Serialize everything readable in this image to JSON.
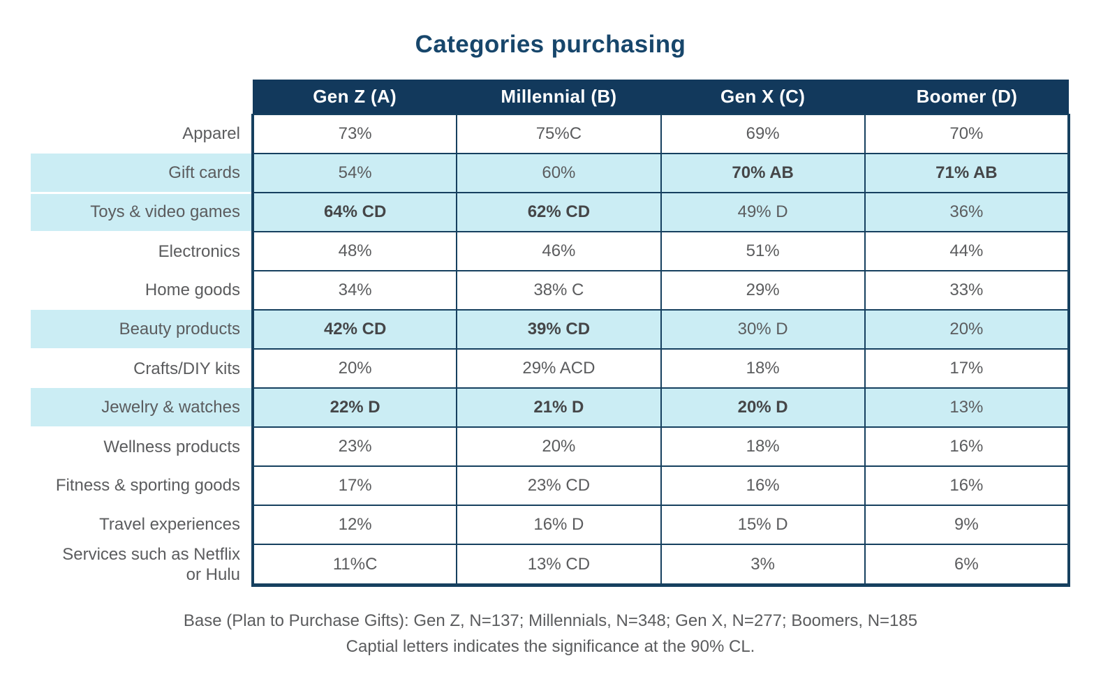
{
  "title": "Categories purchasing",
  "colors": {
    "header_bg": "#12395c",
    "border_navy": "#16405f",
    "highlight": "#cbedf4",
    "text_gray": "#5b5c5e",
    "text_bold": "#454648",
    "title_navy": "#17466b"
  },
  "footnotes": [
    "Base (Plan to Purchase Gifts): Gen Z, N=137; Millennials, N=348; Gen X, N=277; Boomers, N=185",
    "Captial letters indicates the significance at the 90% CL."
  ],
  "chart_data": {
    "type": "table",
    "title": "Categories purchasing",
    "columns": [
      "Gen Z (A)",
      "Millennial (B)",
      "Gen X (C)",
      "Boomer (D)"
    ],
    "categories": [
      "Apparel",
      "Gift cards",
      "Toys & video games",
      "Electronics",
      "Home goods",
      "Beauty products",
      "Crafts/DIY kits",
      "Jewelry & watches",
      "Wellness products",
      "Fitness & sporting goods",
      "Travel experiences",
      "Services such as Netflix or Hulu"
    ],
    "series": [
      {
        "name": "Gen Z (A)",
        "values": [
          73,
          54,
          64,
          48,
          34,
          42,
          20,
          22,
          23,
          17,
          12,
          11
        ]
      },
      {
        "name": "Millennial (B)",
        "values": [
          75,
          60,
          62,
          46,
          38,
          39,
          29,
          21,
          20,
          23,
          16,
          13
        ]
      },
      {
        "name": "Gen X (C)",
        "values": [
          69,
          70,
          49,
          51,
          29,
          30,
          18,
          20,
          18,
          16,
          15,
          3
        ]
      },
      {
        "name": "Boomer (D)",
        "values": [
          70,
          71,
          36,
          44,
          33,
          20,
          17,
          13,
          16,
          16,
          9,
          6
        ]
      }
    ],
    "rows": [
      {
        "label": "Apparel",
        "highlight": false,
        "cells": [
          {
            "text": "73%",
            "bold": false
          },
          {
            "text": "75%C",
            "bold": false
          },
          {
            "text": "69%",
            "bold": false
          },
          {
            "text": "70%",
            "bold": false
          }
        ]
      },
      {
        "label": "Gift cards",
        "highlight": true,
        "cells": [
          {
            "text": "54%",
            "bold": false
          },
          {
            "text": "60%",
            "bold": false
          },
          {
            "text": "70% AB",
            "bold": true
          },
          {
            "text": "71% AB",
            "bold": true
          }
        ]
      },
      {
        "label": "Toys & video games",
        "highlight": true,
        "cells": [
          {
            "text": "64% CD",
            "bold": true
          },
          {
            "text": "62% CD",
            "bold": true
          },
          {
            "text": "49% D",
            "bold": false
          },
          {
            "text": "36%",
            "bold": false
          }
        ]
      },
      {
        "label": "Electronics",
        "highlight": false,
        "cells": [
          {
            "text": "48%",
            "bold": false
          },
          {
            "text": "46%",
            "bold": false
          },
          {
            "text": "51%",
            "bold": false
          },
          {
            "text": "44%",
            "bold": false
          }
        ]
      },
      {
        "label": "Home goods",
        "highlight": false,
        "cells": [
          {
            "text": "34%",
            "bold": false
          },
          {
            "text": "38% C",
            "bold": false
          },
          {
            "text": "29%",
            "bold": false
          },
          {
            "text": "33%",
            "bold": false
          }
        ]
      },
      {
        "label": "Beauty products",
        "highlight": true,
        "cells": [
          {
            "text": "42% CD",
            "bold": true
          },
          {
            "text": "39% CD",
            "bold": true
          },
          {
            "text": "30% D",
            "bold": false
          },
          {
            "text": "20%",
            "bold": false
          }
        ]
      },
      {
        "label": "Crafts/DIY kits",
        "highlight": false,
        "cells": [
          {
            "text": "20%",
            "bold": false
          },
          {
            "text": "29% ACD",
            "bold": false
          },
          {
            "text": "18%",
            "bold": false
          },
          {
            "text": "17%",
            "bold": false
          }
        ]
      },
      {
        "label": "Jewelry & watches",
        "highlight": true,
        "cells": [
          {
            "text": "22% D",
            "bold": true
          },
          {
            "text": "21% D",
            "bold": true
          },
          {
            "text": "20% D",
            "bold": true
          },
          {
            "text": "13%",
            "bold": false
          }
        ]
      },
      {
        "label": "Wellness products",
        "highlight": false,
        "cells": [
          {
            "text": "23%",
            "bold": false
          },
          {
            "text": "20%",
            "bold": false
          },
          {
            "text": "18%",
            "bold": false
          },
          {
            "text": "16%",
            "bold": false
          }
        ]
      },
      {
        "label": "Fitness & sporting goods",
        "highlight": false,
        "cells": [
          {
            "text": "17%",
            "bold": false
          },
          {
            "text": "23% CD",
            "bold": false
          },
          {
            "text": "16%",
            "bold": false
          },
          {
            "text": "16%",
            "bold": false
          }
        ]
      },
      {
        "label": "Travel experiences",
        "highlight": false,
        "cells": [
          {
            "text": "12%",
            "bold": false
          },
          {
            "text": "16% D",
            "bold": false
          },
          {
            "text": "15% D",
            "bold": false
          },
          {
            "text": "9%",
            "bold": false
          }
        ]
      },
      {
        "label": "Services such as Netflix\nor Hulu",
        "highlight": false,
        "cells": [
          {
            "text": "11%C",
            "bold": false
          },
          {
            "text": "13% CD",
            "bold": false
          },
          {
            "text": "3%",
            "bold": false
          },
          {
            "text": "6%",
            "bold": false
          }
        ]
      }
    ],
    "legend_position": "none",
    "grid": true
  }
}
